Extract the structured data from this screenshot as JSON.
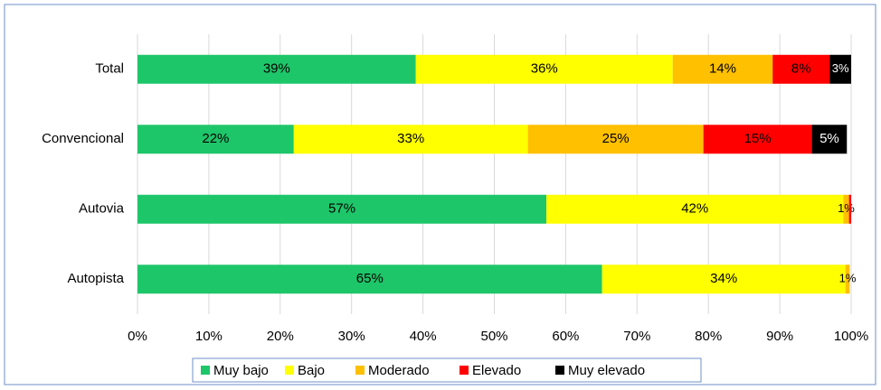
{
  "chart_data": {
    "type": "stacked_barh",
    "categories": [
      "Total",
      "Convencional",
      "Autovia",
      "Autopista"
    ],
    "series": [
      {
        "name": "Muy bajo",
        "color": "#1ec66a",
        "label_color": "#000000",
        "values": [
          39,
          21.9,
          57.3,
          65.1
        ],
        "value_labels": [
          "39%",
          "22%",
          "57%",
          "65%"
        ]
      },
      {
        "name": "Bajo",
        "color": "#ffff00",
        "label_color": "#000000",
        "values": [
          36,
          32.8,
          41.6,
          34.1
        ],
        "value_labels": [
          "36%",
          "33%",
          "42%",
          "34%"
        ]
      },
      {
        "name": "Moderado",
        "color": "#ffc000",
        "label_color": "#000000",
        "values": [
          14,
          24.6,
          0.8,
          0.6
        ],
        "value_labels": [
          "14%",
          "25%",
          "1%",
          "1%"
        ]
      },
      {
        "name": "Elevado",
        "color": "#ff0000",
        "label_color": "#000000",
        "values": [
          8,
          15.2,
          0.3,
          0
        ],
        "value_labels": [
          "8%",
          "15%",
          null,
          null
        ]
      },
      {
        "name": "Muy elevado",
        "color": "#000000",
        "label_color": "#ffffff",
        "values": [
          3,
          4.9,
          0,
          0
        ],
        "value_labels": [
          "3%",
          "5%",
          null,
          null
        ]
      }
    ],
    "xlim": [
      0,
      100
    ],
    "xticks": [
      {
        "value": 0,
        "label": "0%"
      },
      {
        "value": 10,
        "label": "10%"
      },
      {
        "value": 20,
        "label": "20%"
      },
      {
        "value": 30,
        "label": "30%"
      },
      {
        "value": 40,
        "label": "40%"
      },
      {
        "value": 50,
        "label": "50%"
      },
      {
        "value": 60,
        "label": "60%"
      },
      {
        "value": 70,
        "label": "70%"
      },
      {
        "value": 80,
        "label": "80%"
      },
      {
        "value": 90,
        "label": "90%"
      },
      {
        "value": 100,
        "label": "100%"
      }
    ],
    "grid": true,
    "legend": "bottom"
  }
}
